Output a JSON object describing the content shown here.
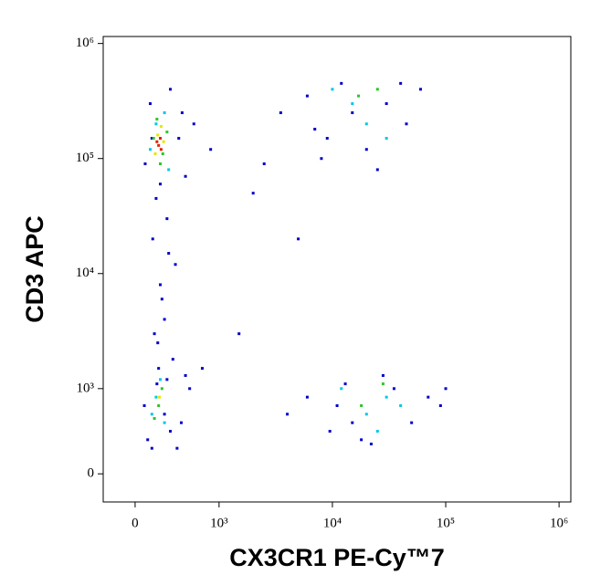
{
  "chart_data": {
    "type": "scatter",
    "x_label": "CX3CR1 PE-Cy™7",
    "y_label": "CD3 APC",
    "xlim": [
      -380,
      1270000
    ],
    "ylim": [
      -330,
      1150000
    ],
    "xticks": [
      0,
      {
        "value": 1000,
        "label": "10³"
      },
      {
        "value": 10000,
        "label": "10⁴"
      },
      {
        "value": 100000,
        "label": "10⁵"
      },
      {
        "value": 1000000,
        "label": "10⁶"
      }
    ],
    "yticks": [
      0,
      {
        "value": 1000,
        "label": "10³"
      },
      {
        "value": 10000,
        "label": "10⁴"
      },
      {
        "value": 100000,
        "label": "10⁵"
      },
      {
        "value": 1000000,
        "label": "10⁶"
      }
    ],
    "series": [
      {
        "color": "#0000c8",
        "x": [
          120,
          180,
          520,
          600,
          700,
          250,
          420,
          380,
          210,
          480,
          900,
          2500,
          3500,
          6000,
          9000,
          12000,
          20000,
          30000,
          45000,
          60000,
          8000,
          15000,
          25000,
          40000,
          7000,
          300,
          350,
          270,
          400,
          320,
          230,
          450,
          280,
          380,
          150,
          200,
          550,
          650,
          4000,
          9500,
          13000,
          18000,
          28000,
          50000,
          70000,
          11000,
          22000,
          35000,
          800,
          1500,
          2000,
          5000,
          350,
          260,
          420,
          110,
          500,
          600,
          90000,
          100000,
          15000,
          6000,
          300,
          200,
          560
        ],
        "y": [
          90000,
          300000,
          150000,
          70000,
          200000,
          45000,
          400000,
          30000,
          20000,
          12000,
          120000,
          90000,
          250000,
          350000,
          150000,
          450000,
          120000,
          300000,
          200000,
          400000,
          100000,
          250000,
          80000,
          450000,
          180000,
          8000,
          4000,
          2500,
          15000,
          6000,
          3000,
          1800,
          1500,
          1200,
          400,
          300,
          600,
          1000,
          700,
          500,
          1100,
          400,
          1300,
          600,
          900,
          800,
          350,
          1000,
          1500,
          3000,
          50000,
          20000,
          700,
          1100,
          500,
          800,
          300,
          1300,
          800,
          1000,
          600,
          900,
          60000,
          150000,
          250000
        ]
      },
      {
        "color": "#00c8e6",
        "x": [
          250,
          400,
          180,
          350,
          15000,
          20000,
          30000,
          10000,
          250,
          350,
          300,
          200,
          20000,
          30000,
          12000,
          40000,
          25000
        ],
        "y": [
          200000,
          80000,
          120000,
          250000,
          300000,
          200000,
          150000,
          400000,
          900,
          600,
          1200,
          700,
          700,
          900,
          1000,
          800,
          500
        ]
      },
      {
        "color": "#28c828",
        "x": [
          220,
          380,
          300,
          260,
          330,
          17000,
          25000,
          280,
          320,
          230,
          18000,
          28000
        ],
        "y": [
          150000,
          170000,
          90000,
          220000,
          110000,
          350000,
          400000,
          800,
          1000,
          650,
          800,
          1100
        ]
      },
      {
        "color": "#e6e600",
        "x": [
          270,
          340,
          240,
          310,
          290
        ],
        "y": [
          160000,
          140000,
          110000,
          190000,
          900
        ]
      },
      {
        "color": "#e61e00",
        "x": [
          280,
          310,
          260,
          300
        ],
        "y": [
          130000,
          120000,
          140000,
          150000
        ]
      }
    ]
  }
}
